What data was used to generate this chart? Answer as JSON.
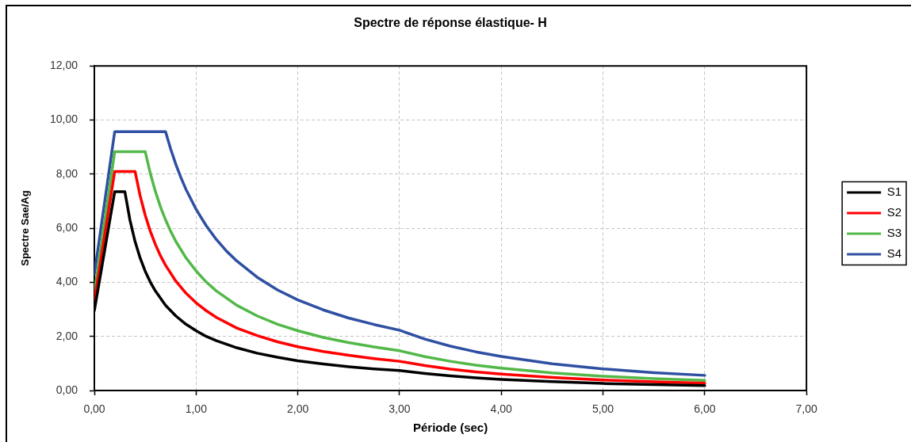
{
  "chart_data": {
    "type": "line",
    "title": "Spectre de réponse élastique- H",
    "xlabel": "Période (sec)",
    "ylabel": "Spectre Sae/Ag",
    "xlim": [
      0,
      7
    ],
    "ylim": [
      0,
      12
    ],
    "xticks": [
      {
        "value": 0,
        "label": "0,00"
      },
      {
        "value": 1,
        "label": "1,00"
      },
      {
        "value": 2,
        "label": "2,00"
      },
      {
        "value": 3,
        "label": "3,00"
      },
      {
        "value": 4,
        "label": "4,00"
      },
      {
        "value": 5,
        "label": "5,00"
      },
      {
        "value": 6,
        "label": "6,00"
      },
      {
        "value": 7,
        "label": "7,00"
      }
    ],
    "yticks": [
      {
        "value": 0,
        "label": "0,00"
      },
      {
        "value": 2,
        "label": "2,00"
      },
      {
        "value": 4,
        "label": "4,00"
      },
      {
        "value": 6,
        "label": "6,00"
      },
      {
        "value": 8,
        "label": "8,00"
      },
      {
        "value": 10,
        "label": "10,00"
      },
      {
        "value": 12,
        "label": "12,00"
      }
    ],
    "grid": true,
    "legend": "right",
    "marker": "none",
    "line_style": "solid",
    "series": [
      {
        "name": "S1",
        "color": "#000000",
        "x": [
          0,
          0.2,
          0.3,
          0.35,
          0.4,
          0.45,
          0.5,
          0.55,
          0.6,
          0.7,
          0.8,
          0.9,
          1,
          1.1,
          1.2,
          1.4,
          1.6,
          1.8,
          2,
          2.25,
          2.5,
          2.75,
          3,
          3.25,
          3.5,
          3.75,
          4,
          4.5,
          5,
          5.5,
          6
        ],
        "values": [
          2.95,
          7.35,
          7.35,
          6.3,
          5.51,
          4.9,
          4.41,
          4.01,
          3.68,
          3.15,
          2.76,
          2.45,
          2.21,
          2.0,
          1.84,
          1.58,
          1.38,
          1.23,
          1.1,
          0.98,
          0.88,
          0.8,
          0.74,
          0.63,
          0.54,
          0.47,
          0.41,
          0.33,
          0.26,
          0.22,
          0.18
        ]
      },
      {
        "name": "S2",
        "color": "#ff0000",
        "x": [
          0,
          0.2,
          0.4,
          0.45,
          0.5,
          0.55,
          0.6,
          0.65,
          0.7,
          0.8,
          0.9,
          1,
          1.1,
          1.2,
          1.4,
          1.6,
          1.8,
          2,
          2.25,
          2.5,
          2.75,
          3,
          3.25,
          3.5,
          3.75,
          4,
          4.5,
          5,
          5.5,
          6
        ],
        "values": [
          3.3,
          8.1,
          8.1,
          7.2,
          6.48,
          5.89,
          5.4,
          4.98,
          4.63,
          4.05,
          3.6,
          3.24,
          2.95,
          2.7,
          2.31,
          2.03,
          1.8,
          1.62,
          1.44,
          1.3,
          1.18,
          1.08,
          0.92,
          0.79,
          0.69,
          0.61,
          0.48,
          0.39,
          0.32,
          0.27
        ]
      },
      {
        "name": "S3",
        "color": "#52b848",
        "x": [
          0,
          0.2,
          0.5,
          0.55,
          0.6,
          0.65,
          0.7,
          0.75,
          0.8,
          0.9,
          1,
          1.1,
          1.2,
          1.4,
          1.6,
          1.8,
          2,
          2.25,
          2.5,
          2.75,
          3,
          3.25,
          3.5,
          3.75,
          4,
          4.5,
          5,
          5.5,
          6
        ],
        "values": [
          3.6,
          8.83,
          8.83,
          8.03,
          7.36,
          6.79,
          6.31,
          5.89,
          5.52,
          4.91,
          4.42,
          4.01,
          3.68,
          3.15,
          2.76,
          2.45,
          2.21,
          1.96,
          1.77,
          1.61,
          1.47,
          1.25,
          1.08,
          0.94,
          0.83,
          0.65,
          0.53,
          0.44,
          0.37
        ]
      },
      {
        "name": "S4",
        "color": "#2f4fa2",
        "x": [
          0,
          0.2,
          0.7,
          0.75,
          0.8,
          0.85,
          0.9,
          1,
          1.1,
          1.2,
          1.3,
          1.4,
          1.6,
          1.8,
          2,
          2.25,
          2.5,
          2.75,
          3,
          3.25,
          3.5,
          3.75,
          4,
          4.5,
          5,
          5.5,
          6
        ],
        "values": [
          4.3,
          9.57,
          9.57,
          8.93,
          8.37,
          7.88,
          7.44,
          6.7,
          6.09,
          5.58,
          5.15,
          4.79,
          4.19,
          3.72,
          3.35,
          2.98,
          2.68,
          2.44,
          2.23,
          1.9,
          1.64,
          1.43,
          1.26,
          0.99,
          0.8,
          0.66,
          0.56
        ]
      }
    ]
  }
}
